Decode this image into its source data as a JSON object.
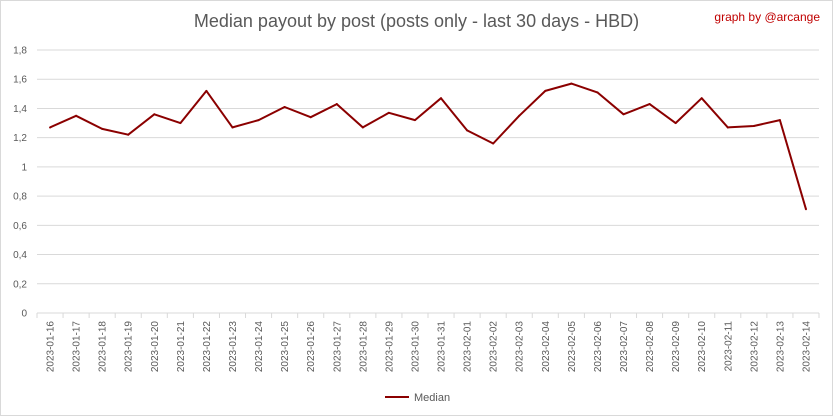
{
  "chart_data": {
    "type": "line",
    "title": "Median payout by post (posts only - last 30 days - HBD)",
    "credit": "graph by @arcange",
    "xlabel": "",
    "ylabel": "",
    "ylim": [
      0,
      1.8
    ],
    "yticks": [
      "0",
      "0,2",
      "0,4",
      "0,6",
      "0,8",
      "1",
      "1,2",
      "1,4",
      "1,6",
      "1,8"
    ],
    "grid": "horizontal",
    "legend_position": "bottom",
    "line_color": "#8b0000",
    "categories": [
      "2023-01-16",
      "2023-01-17",
      "2023-01-18",
      "2023-01-19",
      "2023-01-20",
      "2023-01-21",
      "2023-01-22",
      "2023-01-23",
      "2023-01-24",
      "2023-01-25",
      "2023-01-26",
      "2023-01-27",
      "2023-01-28",
      "2023-01-29",
      "2023-01-30",
      "2023-01-31",
      "2023-02-01",
      "2023-02-02",
      "2023-02-03",
      "2023-02-04",
      "2023-02-05",
      "2023-02-06",
      "2023-02-07",
      "2023-02-08",
      "2023-02-09",
      "2023-02-10",
      "2023-02-11",
      "2023-02-12",
      "2023-02-13",
      "2023-02-14"
    ],
    "series": [
      {
        "name": "Median",
        "values": [
          1.27,
          1.35,
          1.26,
          1.22,
          1.36,
          1.3,
          1.52,
          1.27,
          1.32,
          1.41,
          1.34,
          1.43,
          1.27,
          1.37,
          1.32,
          1.47,
          1.25,
          1.16,
          1.35,
          1.52,
          1.57,
          1.51,
          1.36,
          1.43,
          1.3,
          1.47,
          1.27,
          1.28,
          1.32,
          0.71
        ]
      }
    ]
  }
}
